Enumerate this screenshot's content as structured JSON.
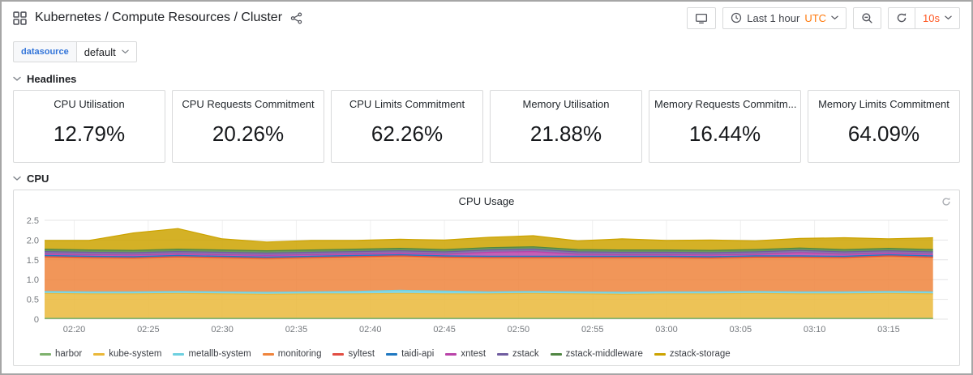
{
  "header": {
    "title": "Kubernetes / Compute Resources / Cluster",
    "time_range_label": "Last 1 hour",
    "timezone_label": "UTC",
    "refresh_interval": "10s"
  },
  "variables": {
    "label": "datasource",
    "value": "default"
  },
  "rows": [
    {
      "label": "Headlines"
    },
    {
      "label": "CPU"
    }
  ],
  "stats": [
    {
      "title": "CPU Utilisation",
      "value": "12.79%"
    },
    {
      "title": "CPU Requests Commitment",
      "value": "20.26%"
    },
    {
      "title": "CPU Limits Commitment",
      "value": "62.26%"
    },
    {
      "title": "Memory Utilisation",
      "value": "21.88%"
    },
    {
      "title": "Memory Requests Commitm...",
      "value": "16.44%"
    },
    {
      "title": "Memory Limits Commitment",
      "value": "64.09%"
    }
  ],
  "cpu_panel": {
    "title": "CPU Usage"
  },
  "icons": {
    "dashboard-grid-icon": "four-squares",
    "share-icon": "share-nodes",
    "tv-icon": "monitor",
    "clock-icon": "clock-outline",
    "chevron-down-icon": "chevron-down",
    "zoom-out-icon": "magnifier-minus",
    "refresh-icon": "circular-arrow",
    "panel-refresh-icon": "circular-arrow"
  },
  "colors": {
    "utc_orange": "#ff780a",
    "refresh_orange": "#ff5722",
    "variable_blue": "#3274d9",
    "panel_border": "#d8d9da"
  },
  "chart_data": {
    "type": "area",
    "stacked": true,
    "title": "CPU Usage",
    "grid": true,
    "legend_position": "bottom",
    "ylim": [
      0,
      2.5
    ],
    "y_ticks": [
      0,
      0.5,
      1,
      1.5,
      2,
      2.5
    ],
    "x_unit": "minutes_after_midnight",
    "x_range": [
      138,
      199
    ],
    "x": [
      138,
      141,
      144,
      147,
      150,
      153,
      156,
      159,
      162,
      165,
      168,
      171,
      174,
      177,
      180,
      183,
      186,
      189,
      192,
      195,
      198
    ],
    "x_ticks": [
      {
        "x": 140,
        "label": "02:20"
      },
      {
        "x": 145,
        "label": "02:25"
      },
      {
        "x": 150,
        "label": "02:30"
      },
      {
        "x": 155,
        "label": "02:35"
      },
      {
        "x": 160,
        "label": "02:40"
      },
      {
        "x": 165,
        "label": "02:45"
      },
      {
        "x": 170,
        "label": "02:50"
      },
      {
        "x": 175,
        "label": "02:55"
      },
      {
        "x": 180,
        "label": "03:00"
      },
      {
        "x": 185,
        "label": "03:05"
      },
      {
        "x": 190,
        "label": "03:10"
      },
      {
        "x": 195,
        "label": "03:15"
      }
    ],
    "series": [
      {
        "name": "harbor",
        "color": "#7EB26D",
        "values": [
          0.02,
          0.02,
          0.02,
          0.02,
          0.02,
          0.02,
          0.02,
          0.02,
          0.02,
          0.02,
          0.02,
          0.02,
          0.02,
          0.02,
          0.02,
          0.02,
          0.02,
          0.02,
          0.02,
          0.02,
          0.02
        ]
      },
      {
        "name": "kube-system",
        "color": "#EAB839",
        "values": [
          0.63,
          0.62,
          0.62,
          0.63,
          0.62,
          0.61,
          0.62,
          0.62,
          0.63,
          0.62,
          0.62,
          0.63,
          0.62,
          0.61,
          0.62,
          0.62,
          0.63,
          0.62,
          0.62,
          0.63,
          0.62
        ]
      },
      {
        "name": "metallb-system",
        "color": "#6ED0E0",
        "values": [
          0.05,
          0.05,
          0.05,
          0.05,
          0.05,
          0.05,
          0.05,
          0.06,
          0.08,
          0.07,
          0.05,
          0.05,
          0.05,
          0.05,
          0.05,
          0.05,
          0.05,
          0.05,
          0.05,
          0.05,
          0.05
        ]
      },
      {
        "name": "monitoring",
        "color": "#EF843C",
        "values": [
          0.86,
          0.85,
          0.84,
          0.86,
          0.85,
          0.84,
          0.85,
          0.86,
          0.85,
          0.84,
          0.85,
          0.84,
          0.85,
          0.86,
          0.85,
          0.84,
          0.85,
          0.86,
          0.85,
          0.88,
          0.86
        ]
      },
      {
        "name": "syltest",
        "color": "#E24D42",
        "values": [
          0.02,
          0.02,
          0.02,
          0.02,
          0.02,
          0.02,
          0.02,
          0.02,
          0.02,
          0.02,
          0.02,
          0.02,
          0.02,
          0.02,
          0.02,
          0.02,
          0.02,
          0.02,
          0.02,
          0.02,
          0.02
        ]
      },
      {
        "name": "taidi-api",
        "color": "#1F78C1",
        "values": [
          0.03,
          0.03,
          0.03,
          0.03,
          0.03,
          0.03,
          0.03,
          0.03,
          0.03,
          0.03,
          0.03,
          0.03,
          0.03,
          0.03,
          0.03,
          0.03,
          0.03,
          0.03,
          0.03,
          0.03,
          0.03
        ]
      },
      {
        "name": "xntest",
        "color": "#BA43A9",
        "values": [
          0.04,
          0.04,
          0.04,
          0.04,
          0.04,
          0.04,
          0.04,
          0.04,
          0.04,
          0.04,
          0.1,
          0.12,
          0.05,
          0.04,
          0.04,
          0.04,
          0.04,
          0.08,
          0.05,
          0.04,
          0.04
        ]
      },
      {
        "name": "zstack",
        "color": "#705DA0",
        "values": [
          0.06,
          0.06,
          0.06,
          0.06,
          0.06,
          0.06,
          0.06,
          0.06,
          0.06,
          0.06,
          0.06,
          0.06,
          0.06,
          0.06,
          0.06,
          0.06,
          0.06,
          0.06,
          0.06,
          0.06,
          0.06
        ]
      },
      {
        "name": "zstack-middleware",
        "color": "#508642",
        "values": [
          0.06,
          0.06,
          0.06,
          0.06,
          0.06,
          0.06,
          0.06,
          0.06,
          0.06,
          0.06,
          0.06,
          0.06,
          0.06,
          0.06,
          0.06,
          0.06,
          0.06,
          0.06,
          0.06,
          0.06,
          0.06
        ]
      },
      {
        "name": "zstack-storage",
        "color": "#CCA300",
        "values": [
          0.22,
          0.24,
          0.44,
          0.52,
          0.28,
          0.22,
          0.24,
          0.22,
          0.23,
          0.24,
          0.26,
          0.28,
          0.22,
          0.28,
          0.24,
          0.26,
          0.22,
          0.24,
          0.3,
          0.24,
          0.3
        ]
      }
    ]
  }
}
